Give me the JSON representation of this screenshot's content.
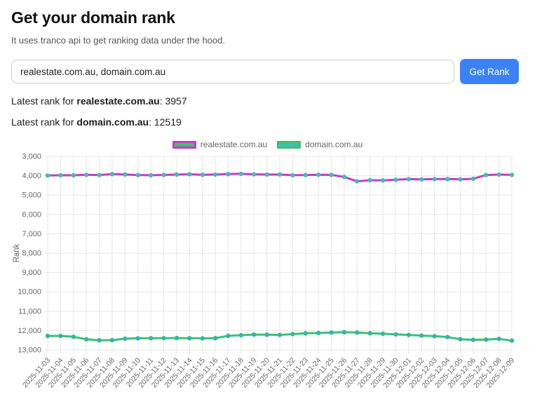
{
  "page": {
    "title": "Get your domain rank",
    "subtitle": "It uses tranco api to get ranking data under the hood."
  },
  "form": {
    "domains_value": "realestate.com.au, domain.com.au",
    "submit_label": "Get Rank"
  },
  "results": [
    {
      "prefix": "Latest rank for ",
      "domain": "realestate.com.au",
      "sep": ": ",
      "rank": "3957"
    },
    {
      "prefix": "Latest rank for ",
      "domain": "domain.com.au",
      "sep": ": ",
      "rank": "12519"
    }
  ],
  "chart_data": {
    "type": "line",
    "title": "",
    "xlabel": "",
    "ylabel": "Rank",
    "y_reversed": true,
    "ylim": [
      3000,
      13000
    ],
    "y_ticks": [
      3000,
      4000,
      5000,
      6000,
      7000,
      8000,
      9000,
      10000,
      11000,
      12000,
      13000
    ],
    "grid": true,
    "legend_position": "top",
    "x": [
      "2025-11-03",
      "2025-11-04",
      "2025-11-05",
      "2025-11-06",
      "2025-11-07",
      "2025-11-08",
      "2025-11-09",
      "2025-11-10",
      "2025-11-11",
      "2025-11-12",
      "2025-11-13",
      "2025-11-14",
      "2025-11-15",
      "2025-11-16",
      "2025-11-17",
      "2025-11-18",
      "2025-11-19",
      "2025-11-20",
      "2025-11-21",
      "2025-11-22",
      "2025-11-23",
      "2025-11-24",
      "2025-11-25",
      "2025-11-26",
      "2025-11-27",
      "2025-11-28",
      "2025-11-29",
      "2025-11-30",
      "2025-12-01",
      "2025-12-02",
      "2025-12-03",
      "2025-12-04",
      "2025-12-05",
      "2025-12-06",
      "2025-12-07",
      "2025-12-08",
      "2025-12-09"
    ],
    "series": [
      {
        "name": "realestate.com.au",
        "line_color": "#c93ac9",
        "fill_color": "#3ec46d",
        "point_color": "#41bfae",
        "values": [
          3988,
          3976,
          3979,
          3952,
          3962,
          3915,
          3940,
          3962,
          3975,
          3961,
          3938,
          3925,
          3950,
          3938,
          3915,
          3902,
          3927,
          3938,
          3940,
          3974,
          3962,
          3950,
          3958,
          4060,
          4290,
          4232,
          4242,
          4210,
          4174,
          4188,
          4175,
          4172,
          4186,
          4158,
          3962,
          3940,
          3957
        ]
      },
      {
        "name": "domain.com.au",
        "line_color": "#3dc16d",
        "fill_color": "#3cc0b4",
        "point_color": "#35b5a9",
        "values": [
          12280,
          12276,
          12322,
          12448,
          12505,
          12496,
          12421,
          12400,
          12396,
          12390,
          12386,
          12394,
          12402,
          12392,
          12274,
          12240,
          12205,
          12214,
          12226,
          12186,
          12140,
          12126,
          12101,
          12086,
          12100,
          12136,
          12164,
          12200,
          12226,
          12260,
          12290,
          12338,
          12444,
          12478,
          12466,
          12430,
          12519
        ]
      }
    ]
  }
}
